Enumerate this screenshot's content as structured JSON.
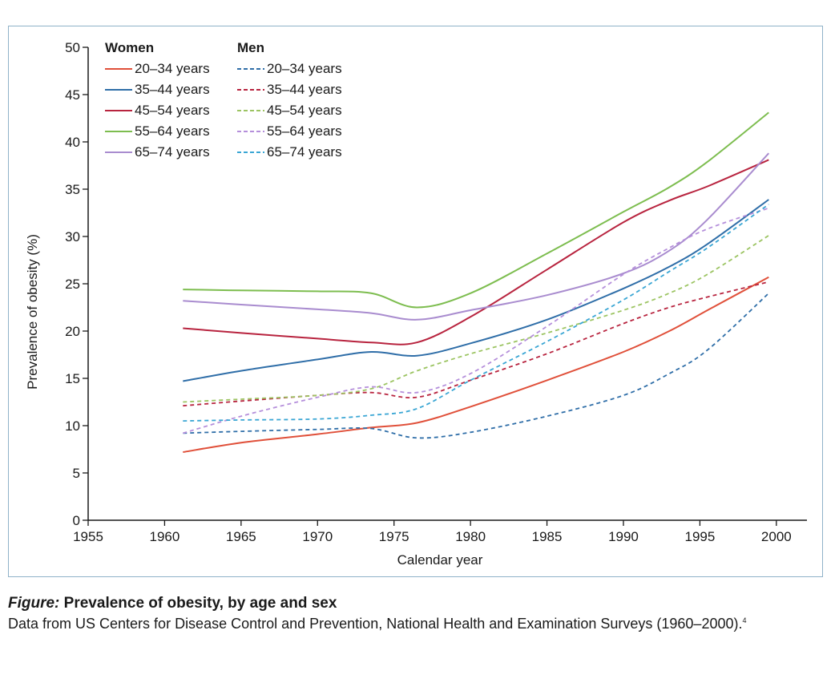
{
  "caption": {
    "title_lead": "Figure:",
    "title": "Prevalence of obesity, by age and sex",
    "source": "Data from US Centers for Disease Control and Prevention, National Health and Examination Surveys (1960–2000).",
    "ref": "4"
  },
  "chart_data": {
    "type": "line",
    "xlabel": "Calendar year",
    "ylabel": "Prevalence of obesity (%)",
    "xlim": [
      1955,
      2002
    ],
    "ylim": [
      0,
      50
    ],
    "xticks": [
      1955,
      1960,
      1965,
      1970,
      1975,
      1980,
      1985,
      1990,
      1995,
      2000
    ],
    "yticks": [
      0,
      5,
      10,
      15,
      20,
      25,
      30,
      35,
      40,
      45,
      50
    ],
    "grid": false,
    "legend_position": "top-left",
    "legend_groups": [
      {
        "title": "Women",
        "style": "solid"
      },
      {
        "title": "Men",
        "style": "dashed"
      }
    ],
    "series": [
      {
        "name": "20–34 years",
        "group": "Women",
        "color": "#e0503a",
        "dashed": false,
        "points": [
          [
            1961.2,
            7.2
          ],
          [
            1965,
            8.2
          ],
          [
            1970,
            9.1
          ],
          [
            1973.5,
            9.8
          ],
          [
            1976.5,
            10.3
          ],
          [
            1980,
            12.0
          ],
          [
            1985,
            14.8
          ],
          [
            1990,
            17.8
          ],
          [
            1993,
            20.0
          ],
          [
            1995.5,
            22.2
          ],
          [
            1999.5,
            25.7
          ]
        ]
      },
      {
        "name": "35–44 years",
        "group": "Women",
        "color": "#2f6ea8",
        "dashed": false,
        "points": [
          [
            1961.2,
            14.7
          ],
          [
            1965,
            15.8
          ],
          [
            1970,
            17.0
          ],
          [
            1973.5,
            17.8
          ],
          [
            1976.5,
            17.4
          ],
          [
            1980,
            18.7
          ],
          [
            1985,
            21.2
          ],
          [
            1990,
            24.5
          ],
          [
            1993,
            26.8
          ],
          [
            1995.5,
            29.2
          ],
          [
            1999.5,
            33.9
          ]
        ]
      },
      {
        "name": "45–54 years",
        "group": "Women",
        "color": "#b8243f",
        "dashed": false,
        "points": [
          [
            1961.2,
            20.3
          ],
          [
            1965,
            19.8
          ],
          [
            1970,
            19.2
          ],
          [
            1973.5,
            18.8
          ],
          [
            1976.5,
            18.8
          ],
          [
            1980,
            21.5
          ],
          [
            1985,
            26.5
          ],
          [
            1990,
            31.5
          ],
          [
            1993,
            33.8
          ],
          [
            1995.5,
            35.3
          ],
          [
            1999.5,
            38.1
          ]
        ]
      },
      {
        "name": "55–64 years",
        "group": "Women",
        "color": "#7dbd4f",
        "dashed": false,
        "points": [
          [
            1961.2,
            24.4
          ],
          [
            1965,
            24.3
          ],
          [
            1970,
            24.2
          ],
          [
            1973.5,
            24.0
          ],
          [
            1976.5,
            22.5
          ],
          [
            1980,
            24.0
          ],
          [
            1985,
            28.2
          ],
          [
            1990,
            32.6
          ],
          [
            1993,
            35.2
          ],
          [
            1995.5,
            37.9
          ],
          [
            1999.5,
            43.1
          ]
        ]
      },
      {
        "name": "65–74 years",
        "group": "Women",
        "color": "#a98ccf",
        "dashed": false,
        "points": [
          [
            1961.2,
            23.2
          ],
          [
            1965,
            22.8
          ],
          [
            1970,
            22.3
          ],
          [
            1973.5,
            21.9
          ],
          [
            1976.5,
            21.2
          ],
          [
            1980,
            22.2
          ],
          [
            1985,
            23.8
          ],
          [
            1990,
            26.1
          ],
          [
            1993,
            28.5
          ],
          [
            1995.5,
            31.8
          ],
          [
            1999.5,
            38.8
          ]
        ]
      },
      {
        "name": "20–34 years",
        "group": "Men",
        "color": "#2f6ea8",
        "dashed": true,
        "points": [
          [
            1961.2,
            9.2
          ],
          [
            1965,
            9.4
          ],
          [
            1970,
            9.6
          ],
          [
            1973.5,
            9.7
          ],
          [
            1976.5,
            8.7
          ],
          [
            1980,
            9.3
          ],
          [
            1985,
            11.0
          ],
          [
            1990,
            13.2
          ],
          [
            1993,
            15.5
          ],
          [
            1995.5,
            18.0
          ],
          [
            1999.5,
            24.0
          ]
        ]
      },
      {
        "name": "35–44 years",
        "group": "Men",
        "color": "#b8243f",
        "dashed": true,
        "points": [
          [
            1961.2,
            12.1
          ],
          [
            1965,
            12.6
          ],
          [
            1970,
            13.2
          ],
          [
            1973.5,
            13.5
          ],
          [
            1976.5,
            13.0
          ],
          [
            1980,
            14.8
          ],
          [
            1985,
            17.6
          ],
          [
            1990,
            20.8
          ],
          [
            1993,
            22.5
          ],
          [
            1995.5,
            23.6
          ],
          [
            1999.5,
            25.2
          ]
        ]
      },
      {
        "name": "45–54 years",
        "group": "Men",
        "color": "#9cc462",
        "dashed": true,
        "points": [
          [
            1961.2,
            12.5
          ],
          [
            1965,
            12.8
          ],
          [
            1970,
            13.2
          ],
          [
            1973.5,
            13.9
          ],
          [
            1976.5,
            15.8
          ],
          [
            1980,
            17.6
          ],
          [
            1985,
            19.8
          ],
          [
            1990,
            22.2
          ],
          [
            1993,
            24.0
          ],
          [
            1995.5,
            26.0
          ],
          [
            1999.5,
            30.1
          ]
        ]
      },
      {
        "name": "55–64 years",
        "group": "Men",
        "color": "#b58fdb",
        "dashed": true,
        "points": [
          [
            1961.2,
            9.2
          ],
          [
            1965,
            11.0
          ],
          [
            1970,
            13.0
          ],
          [
            1973.5,
            14.1
          ],
          [
            1976.5,
            13.5
          ],
          [
            1980,
            15.5
          ],
          [
            1985,
            20.5
          ],
          [
            1990,
            26.0
          ],
          [
            1993,
            28.8
          ],
          [
            1995.5,
            30.8
          ],
          [
            1999.5,
            33.0
          ]
        ]
      },
      {
        "name": "65–74 years",
        "group": "Men",
        "color": "#3aa6d4",
        "dashed": true,
        "points": [
          [
            1961.2,
            10.5
          ],
          [
            1965,
            10.6
          ],
          [
            1970,
            10.7
          ],
          [
            1973.5,
            11.1
          ],
          [
            1976.5,
            11.8
          ],
          [
            1980,
            14.8
          ],
          [
            1985,
            18.9
          ],
          [
            1990,
            23.3
          ],
          [
            1993,
            26.3
          ],
          [
            1995.5,
            28.8
          ],
          [
            1999.5,
            33.4
          ]
        ]
      }
    ]
  }
}
